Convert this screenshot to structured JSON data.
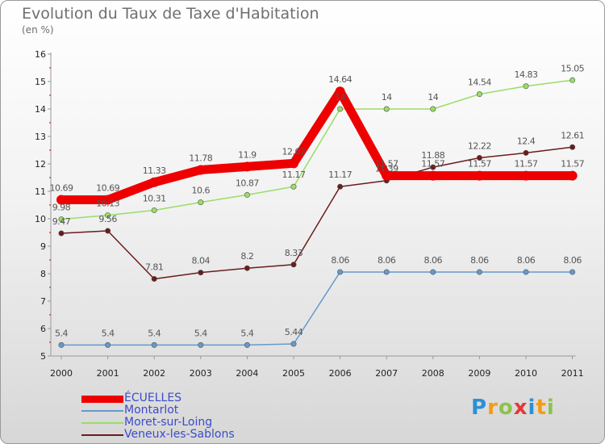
{
  "title": "Evolution du Taux de Taxe d'Habitation",
  "subtitle": "(en %)",
  "logo": {
    "text": "Proxiti",
    "letters": [
      "P",
      "r",
      "o",
      "x",
      "i",
      "t",
      "i"
    ],
    "colors": [
      "#2d8fd5",
      "#f39c12",
      "#8bc34a",
      "#e53935",
      "#2d8fd5",
      "#f39c12",
      "#8bc34a"
    ]
  },
  "chart_data": {
    "type": "line",
    "title": "Evolution du Taux de Taxe d'Habitation",
    "ylabel": "(en %)",
    "xlabel": "",
    "categories": [
      "2000",
      "2001",
      "2002",
      "2003",
      "2004",
      "2005",
      "2006",
      "2007",
      "2008",
      "2009",
      "2010",
      "2011"
    ],
    "ylim": [
      5,
      16
    ],
    "yticks": [
      "5",
      "6",
      "7",
      "8",
      "9",
      "10",
      "11",
      "12",
      "13",
      "14",
      "15",
      "16"
    ],
    "grid": false,
    "legend_position": "bottom-left",
    "series": [
      {
        "name": "ÉCUELLES",
        "color": "#ee0000",
        "values": [
          10.69,
          10.69,
          11.33,
          11.78,
          11.9,
          12.02,
          14.64,
          11.57,
          11.57,
          11.57,
          11.57,
          11.57
        ],
        "labels": [
          "10.69",
          "10.69",
          "11.33",
          "11.78",
          "11.9",
          "12.02",
          "14.64",
          "11.57",
          "11.57",
          "11.57",
          "11.57",
          "11.57"
        ]
      },
      {
        "name": "Montarlot",
        "color": "#6699cc",
        "values": [
          5.4,
          5.4,
          5.4,
          5.4,
          5.4,
          5.44,
          8.06,
          8.06,
          8.06,
          8.06,
          8.06,
          8.06
        ],
        "labels": [
          "5.4",
          "5.4",
          "5.4",
          "5.4",
          "5.4",
          "5.44",
          "8.06",
          "8.06",
          "8.06",
          "8.06",
          "8.06",
          "8.06"
        ]
      },
      {
        "name": "Moret-sur-Loing",
        "color": "#99dd66",
        "values": [
          9.98,
          10.13,
          10.31,
          10.6,
          10.87,
          11.17,
          14,
          14,
          14,
          14.54,
          14.83,
          15.05
        ],
        "labels": [
          "9.98",
          "10.13",
          "10.31",
          "10.6",
          "10.87",
          "11.17",
          "14",
          "14",
          "14",
          "14.54",
          "14.83",
          "15.05"
        ]
      },
      {
        "name": "Veneux-les-Sablons",
        "color": "#6b1c1c",
        "values": [
          9.47,
          9.56,
          7.81,
          8.04,
          8.2,
          8.33,
          11.17,
          11.39,
          11.88,
          12.22,
          12.4,
          12.61
        ],
        "labels": [
          "9.47",
          "9.56",
          "7.81",
          "8.04",
          "8.2",
          "8.33",
          "11.17",
          "11.39",
          "11.88",
          "12.22",
          "12.4",
          "12.61"
        ]
      }
    ]
  }
}
